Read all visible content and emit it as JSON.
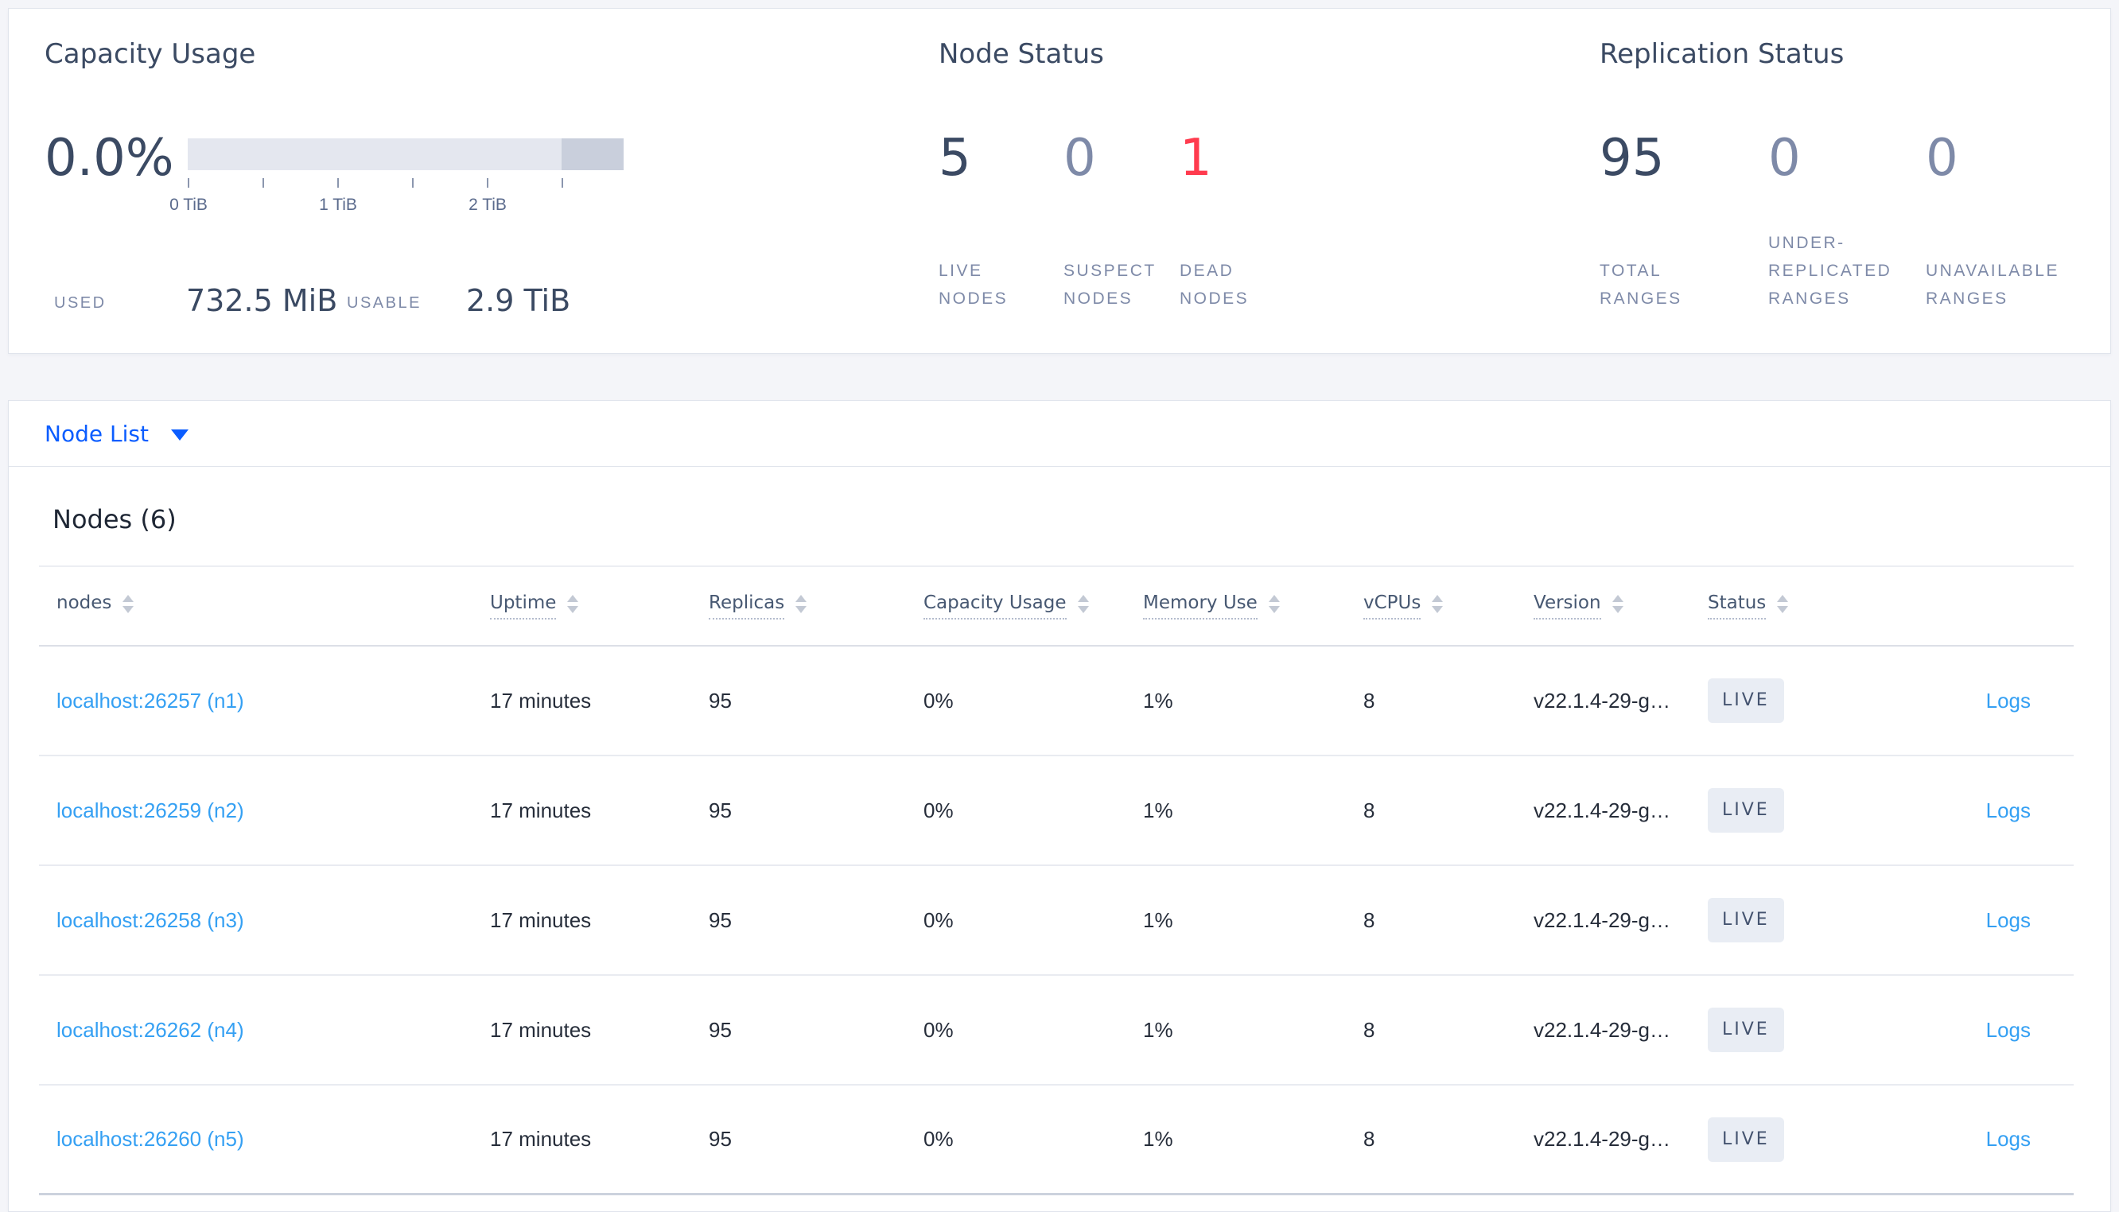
{
  "summary": {
    "capacity": {
      "title": "Capacity Usage",
      "percent": "0.0%",
      "tick_labels": [
        "0 TiB",
        "1 TiB",
        "2 TiB"
      ],
      "used_label": "USED",
      "used_value": "732.5 MiB",
      "usable_label": "USABLE",
      "usable_value": "2.9 TiB"
    },
    "node_status": {
      "title": "Node Status",
      "stats": [
        {
          "value": "5",
          "label": "LIVE\nNODES",
          "tone": "dark"
        },
        {
          "value": "0",
          "label": "SUSPECT\nNODES",
          "tone": "muted"
        },
        {
          "value": "1",
          "label": "DEAD\nNODES",
          "tone": "danger"
        }
      ]
    },
    "replication": {
      "title": "Replication Status",
      "stats": [
        {
          "value": "95",
          "label": "TOTAL\nRANGES",
          "tone": "dark"
        },
        {
          "value": "0",
          "label": "UNDER-\nREPLICATED\nRANGES",
          "tone": "muted"
        },
        {
          "value": "0",
          "label": "UNAVAILABLE\nRANGES",
          "tone": "muted"
        }
      ]
    }
  },
  "view_selector": {
    "label": "Node List"
  },
  "nodes": {
    "heading": "Nodes (6)",
    "columns": [
      {
        "key": "addr",
        "label": "nodes",
        "sortable": true,
        "underlined": false
      },
      {
        "key": "uptime",
        "label": "Uptime",
        "sortable": true,
        "underlined": true
      },
      {
        "key": "replicas",
        "label": "Replicas",
        "sortable": true,
        "underlined": true
      },
      {
        "key": "capacity",
        "label": "Capacity Usage",
        "sortable": true,
        "underlined": true
      },
      {
        "key": "memory",
        "label": "Memory Use",
        "sortable": true,
        "underlined": true
      },
      {
        "key": "vcpus",
        "label": "vCPUs",
        "sortable": true,
        "underlined": true
      },
      {
        "key": "version",
        "label": "Version",
        "sortable": true,
        "underlined": true
      },
      {
        "key": "status",
        "label": "Status",
        "sortable": true,
        "underlined": true
      },
      {
        "key": "logs",
        "label": "",
        "sortable": false,
        "underlined": false
      }
    ],
    "rows": [
      {
        "addr": "localhost:26257 (n1)",
        "uptime": "17 minutes",
        "replicas": "95",
        "capacity": "0%",
        "memory": "1%",
        "vcpus": "8",
        "version": "v22.1.4-29-g…",
        "status": "LIVE",
        "logs": "Logs"
      },
      {
        "addr": "localhost:26259 (n2)",
        "uptime": "17 minutes",
        "replicas": "95",
        "capacity": "0%",
        "memory": "1%",
        "vcpus": "8",
        "version": "v22.1.4-29-g…",
        "status": "LIVE",
        "logs": "Logs"
      },
      {
        "addr": "localhost:26258 (n3)",
        "uptime": "17 minutes",
        "replicas": "95",
        "capacity": "0%",
        "memory": "1%",
        "vcpus": "8",
        "version": "v22.1.4-29-g…",
        "status": "LIVE",
        "logs": "Logs"
      },
      {
        "addr": "localhost:26262 (n4)",
        "uptime": "17 minutes",
        "replicas": "95",
        "capacity": "0%",
        "memory": "1%",
        "vcpus": "8",
        "version": "v22.1.4-29-g…",
        "status": "LIVE",
        "logs": "Logs"
      },
      {
        "addr": "localhost:26260 (n5)",
        "uptime": "17 minutes",
        "replicas": "95",
        "capacity": "0%",
        "memory": "1%",
        "vcpus": "8",
        "version": "v22.1.4-29-g…",
        "status": "LIVE",
        "logs": "Logs"
      }
    ]
  },
  "colors": {
    "accent_blue": "#0b5dff",
    "link_blue": "#35a0f3",
    "danger_red": "#ff3b4e",
    "dark_slate": "#3b4a63",
    "muted_slate": "#7e8aa8",
    "badge_bg": "#e9edf4",
    "bar_track": "#e4e7ef",
    "bar_reserved": "#c9cfdc"
  }
}
